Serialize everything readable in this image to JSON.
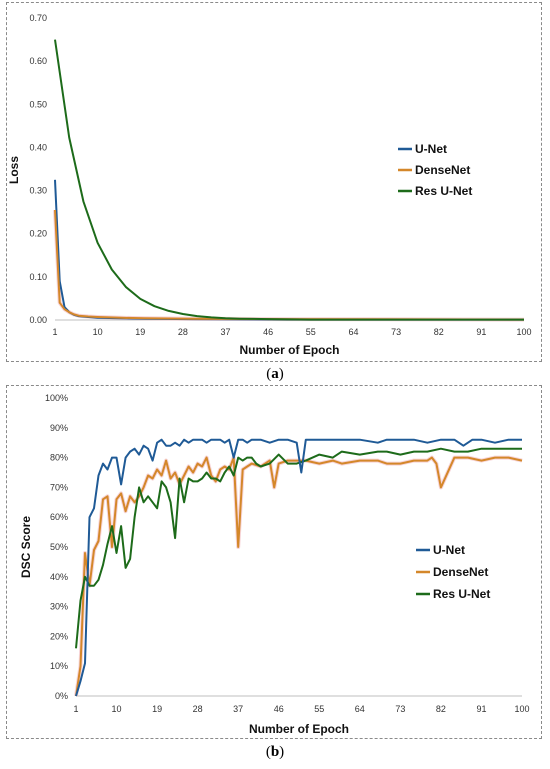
{
  "captions": {
    "a": "a",
    "b": "b"
  },
  "colors": {
    "unet": "#1f5a96",
    "densenet": "#d4872a",
    "resunet": "#1d6b1a",
    "highlight": "#f3c3c8"
  },
  "chart_data": [
    {
      "id": "loss",
      "type": "line",
      "xlabel": "Number of Epoch",
      "ylabel": "Loss",
      "xlim": [
        1,
        100
      ],
      "ylim": [
        0,
        0.7
      ],
      "xticks": [
        1,
        10,
        19,
        28,
        37,
        46,
        55,
        64,
        73,
        82,
        91,
        100
      ],
      "yticks": [
        "0.00",
        "0.10",
        "0.20",
        "0.30",
        "0.40",
        "0.50",
        "0.60",
        "0.70"
      ],
      "ytick_values": [
        0,
        0.1,
        0.2,
        0.3,
        0.4,
        0.5,
        0.6,
        0.7
      ],
      "legend": [
        "U-Net",
        "DenseNet",
        "Res U-Net"
      ],
      "legend_position": "right",
      "series": [
        {
          "name": "U-Net",
          "x": [
            1,
            2,
            3,
            4,
            5,
            6,
            8,
            10,
            15,
            20,
            30,
            50,
            100
          ],
          "y": [
            0.325,
            0.09,
            0.03,
            0.018,
            0.012,
            0.009,
            0.007,
            0.005,
            0.004,
            0.003,
            0.002,
            0.001,
            0.001
          ]
        },
        {
          "name": "DenseNet",
          "x": [
            1,
            2,
            3,
            4,
            5,
            6,
            8,
            10,
            15,
            20,
            30,
            50,
            100
          ],
          "y": [
            0.255,
            0.04,
            0.025,
            0.018,
            0.013,
            0.01,
            0.008,
            0.007,
            0.005,
            0.004,
            0.003,
            0.002,
            0.001
          ]
        },
        {
          "name": "Res U-Net",
          "x": [
            1,
            4,
            7,
            10,
            13,
            16,
            19,
            22,
            25,
            28,
            31,
            34,
            37,
            40,
            46,
            55,
            64,
            73,
            82,
            91,
            100
          ],
          "y": [
            0.65,
            0.423,
            0.275,
            0.179,
            0.117,
            0.076,
            0.049,
            0.032,
            0.021,
            0.014,
            0.009,
            0.006,
            0.004,
            0.003,
            0.002,
            0.001,
            0.001,
            0.001,
            0.001,
            0.001,
            0.001
          ]
        }
      ]
    },
    {
      "id": "dsc",
      "type": "line",
      "xlabel": "Number of Epoch",
      "ylabel": "DSC Score",
      "xlim": [
        1,
        100
      ],
      "ylim": [
        0,
        1.0
      ],
      "xticks": [
        1,
        10,
        19,
        28,
        37,
        46,
        55,
        64,
        73,
        82,
        91,
        100
      ],
      "yticks": [
        "0%",
        "10%",
        "20%",
        "30%",
        "40%",
        "50%",
        "60%",
        "70%",
        "80%",
        "90%",
        "100%"
      ],
      "ytick_values": [
        0,
        0.1,
        0.2,
        0.3,
        0.4,
        0.5,
        0.6,
        0.7,
        0.8,
        0.9,
        1.0
      ],
      "legend": [
        "U-Net",
        "DenseNet",
        "Res U-Net"
      ],
      "legend_position": "right",
      "series": [
        {
          "name": "U-Net",
          "x": [
            1,
            2,
            3,
            4,
            5,
            6,
            7,
            8,
            9,
            10,
            11,
            12,
            13,
            14,
            15,
            16,
            17,
            18,
            19,
            20,
            21,
            22,
            23,
            24,
            25,
            26,
            27,
            28,
            29,
            30,
            31,
            32,
            33,
            34,
            35,
            36,
            37,
            38,
            39,
            40,
            42,
            44,
            46,
            48,
            50,
            51,
            52,
            55,
            60,
            64,
            68,
            70,
            73,
            76,
            79,
            82,
            85,
            87,
            89,
            91,
            94,
            97,
            100
          ],
          "y": [
            0.0,
            0.05,
            0.11,
            0.6,
            0.63,
            0.74,
            0.78,
            0.76,
            0.8,
            0.8,
            0.71,
            0.8,
            0.82,
            0.83,
            0.81,
            0.84,
            0.83,
            0.79,
            0.85,
            0.86,
            0.84,
            0.84,
            0.85,
            0.84,
            0.86,
            0.85,
            0.86,
            0.86,
            0.86,
            0.85,
            0.86,
            0.86,
            0.86,
            0.85,
            0.86,
            0.8,
            0.86,
            0.86,
            0.85,
            0.86,
            0.86,
            0.85,
            0.86,
            0.86,
            0.85,
            0.75,
            0.86,
            0.86,
            0.86,
            0.86,
            0.85,
            0.86,
            0.86,
            0.86,
            0.85,
            0.86,
            0.86,
            0.84,
            0.86,
            0.86,
            0.85,
            0.86,
            0.86
          ]
        },
        {
          "name": "DenseNet",
          "x": [
            1,
            2,
            3,
            4,
            5,
            6,
            7,
            8,
            9,
            10,
            11,
            12,
            13,
            14,
            15,
            16,
            17,
            18,
            19,
            20,
            21,
            22,
            23,
            24,
            25,
            26,
            27,
            28,
            29,
            30,
            31,
            32,
            33,
            34,
            35,
            36,
            37,
            38,
            39,
            40,
            42,
            44,
            45,
            46,
            48,
            50,
            52,
            55,
            58,
            60,
            64,
            68,
            70,
            73,
            76,
            79,
            80,
            81,
            82,
            85,
            88,
            91,
            94,
            97,
            100
          ],
          "y": [
            0.0,
            0.1,
            0.48,
            0.37,
            0.49,
            0.52,
            0.66,
            0.67,
            0.5,
            0.66,
            0.68,
            0.62,
            0.67,
            0.65,
            0.67,
            0.7,
            0.74,
            0.73,
            0.76,
            0.74,
            0.79,
            0.73,
            0.75,
            0.71,
            0.74,
            0.77,
            0.75,
            0.78,
            0.77,
            0.8,
            0.74,
            0.72,
            0.76,
            0.77,
            0.76,
            0.8,
            0.5,
            0.76,
            0.77,
            0.78,
            0.77,
            0.79,
            0.7,
            0.78,
            0.79,
            0.79,
            0.79,
            0.78,
            0.79,
            0.78,
            0.79,
            0.79,
            0.78,
            0.78,
            0.79,
            0.79,
            0.8,
            0.78,
            0.7,
            0.8,
            0.8,
            0.79,
            0.8,
            0.8,
            0.79
          ]
        },
        {
          "name": "Res U-Net",
          "x": [
            1,
            2,
            3,
            4,
            5,
            6,
            7,
            8,
            9,
            10,
            11,
            12,
            13,
            14,
            15,
            16,
            17,
            18,
            19,
            20,
            21,
            22,
            23,
            24,
            25,
            26,
            27,
            28,
            29,
            30,
            31,
            32,
            33,
            34,
            35,
            36,
            37,
            38,
            39,
            40,
            41,
            42,
            44,
            46,
            48,
            50,
            52,
            55,
            58,
            60,
            64,
            68,
            70,
            73,
            76,
            79,
            82,
            85,
            88,
            91,
            94,
            97,
            100
          ],
          "y": [
            0.16,
            0.32,
            0.4,
            0.37,
            0.37,
            0.39,
            0.44,
            0.51,
            0.57,
            0.48,
            0.57,
            0.43,
            0.46,
            0.6,
            0.7,
            0.65,
            0.67,
            0.65,
            0.63,
            0.72,
            0.7,
            0.65,
            0.53,
            0.73,
            0.65,
            0.73,
            0.72,
            0.72,
            0.73,
            0.75,
            0.73,
            0.73,
            0.72,
            0.75,
            0.77,
            0.74,
            0.8,
            0.79,
            0.8,
            0.8,
            0.78,
            0.77,
            0.78,
            0.81,
            0.78,
            0.78,
            0.79,
            0.81,
            0.8,
            0.82,
            0.81,
            0.82,
            0.82,
            0.81,
            0.82,
            0.82,
            0.83,
            0.82,
            0.82,
            0.83,
            0.83,
            0.83,
            0.83
          ]
        }
      ]
    }
  ]
}
